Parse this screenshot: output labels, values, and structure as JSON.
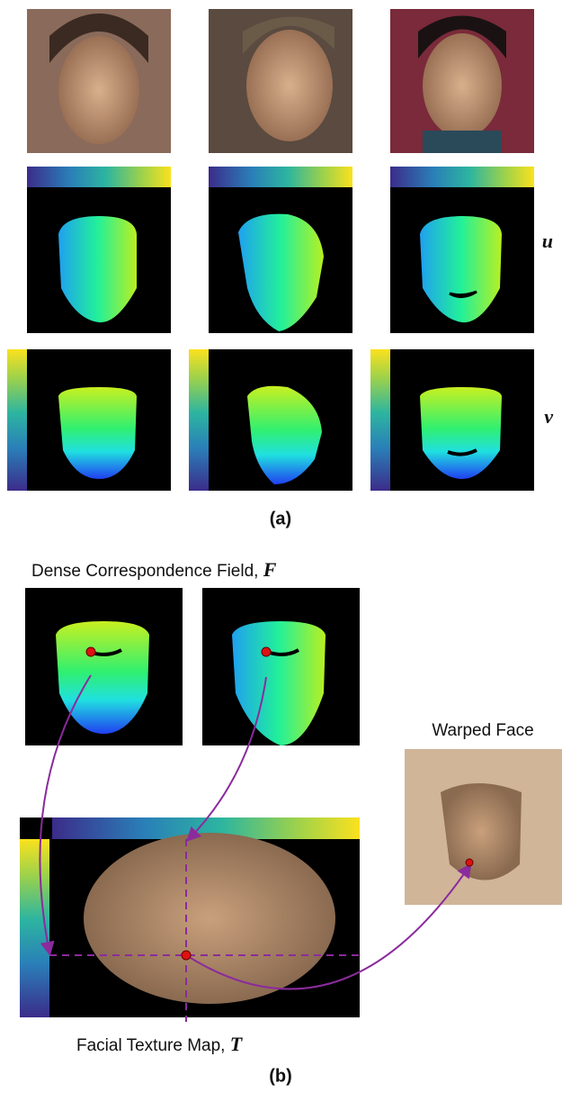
{
  "part_a": {
    "row_labels": [
      "u",
      "v"
    ],
    "caption": "(a)"
  },
  "part_b": {
    "field_title": {
      "text": "Dense Correspondence Field,",
      "symbol": "F"
    },
    "warped_title": "Warped Face",
    "texture_caption": {
      "text": "Facial Texture Map,",
      "symbol": "T"
    },
    "caption": "(b)"
  }
}
